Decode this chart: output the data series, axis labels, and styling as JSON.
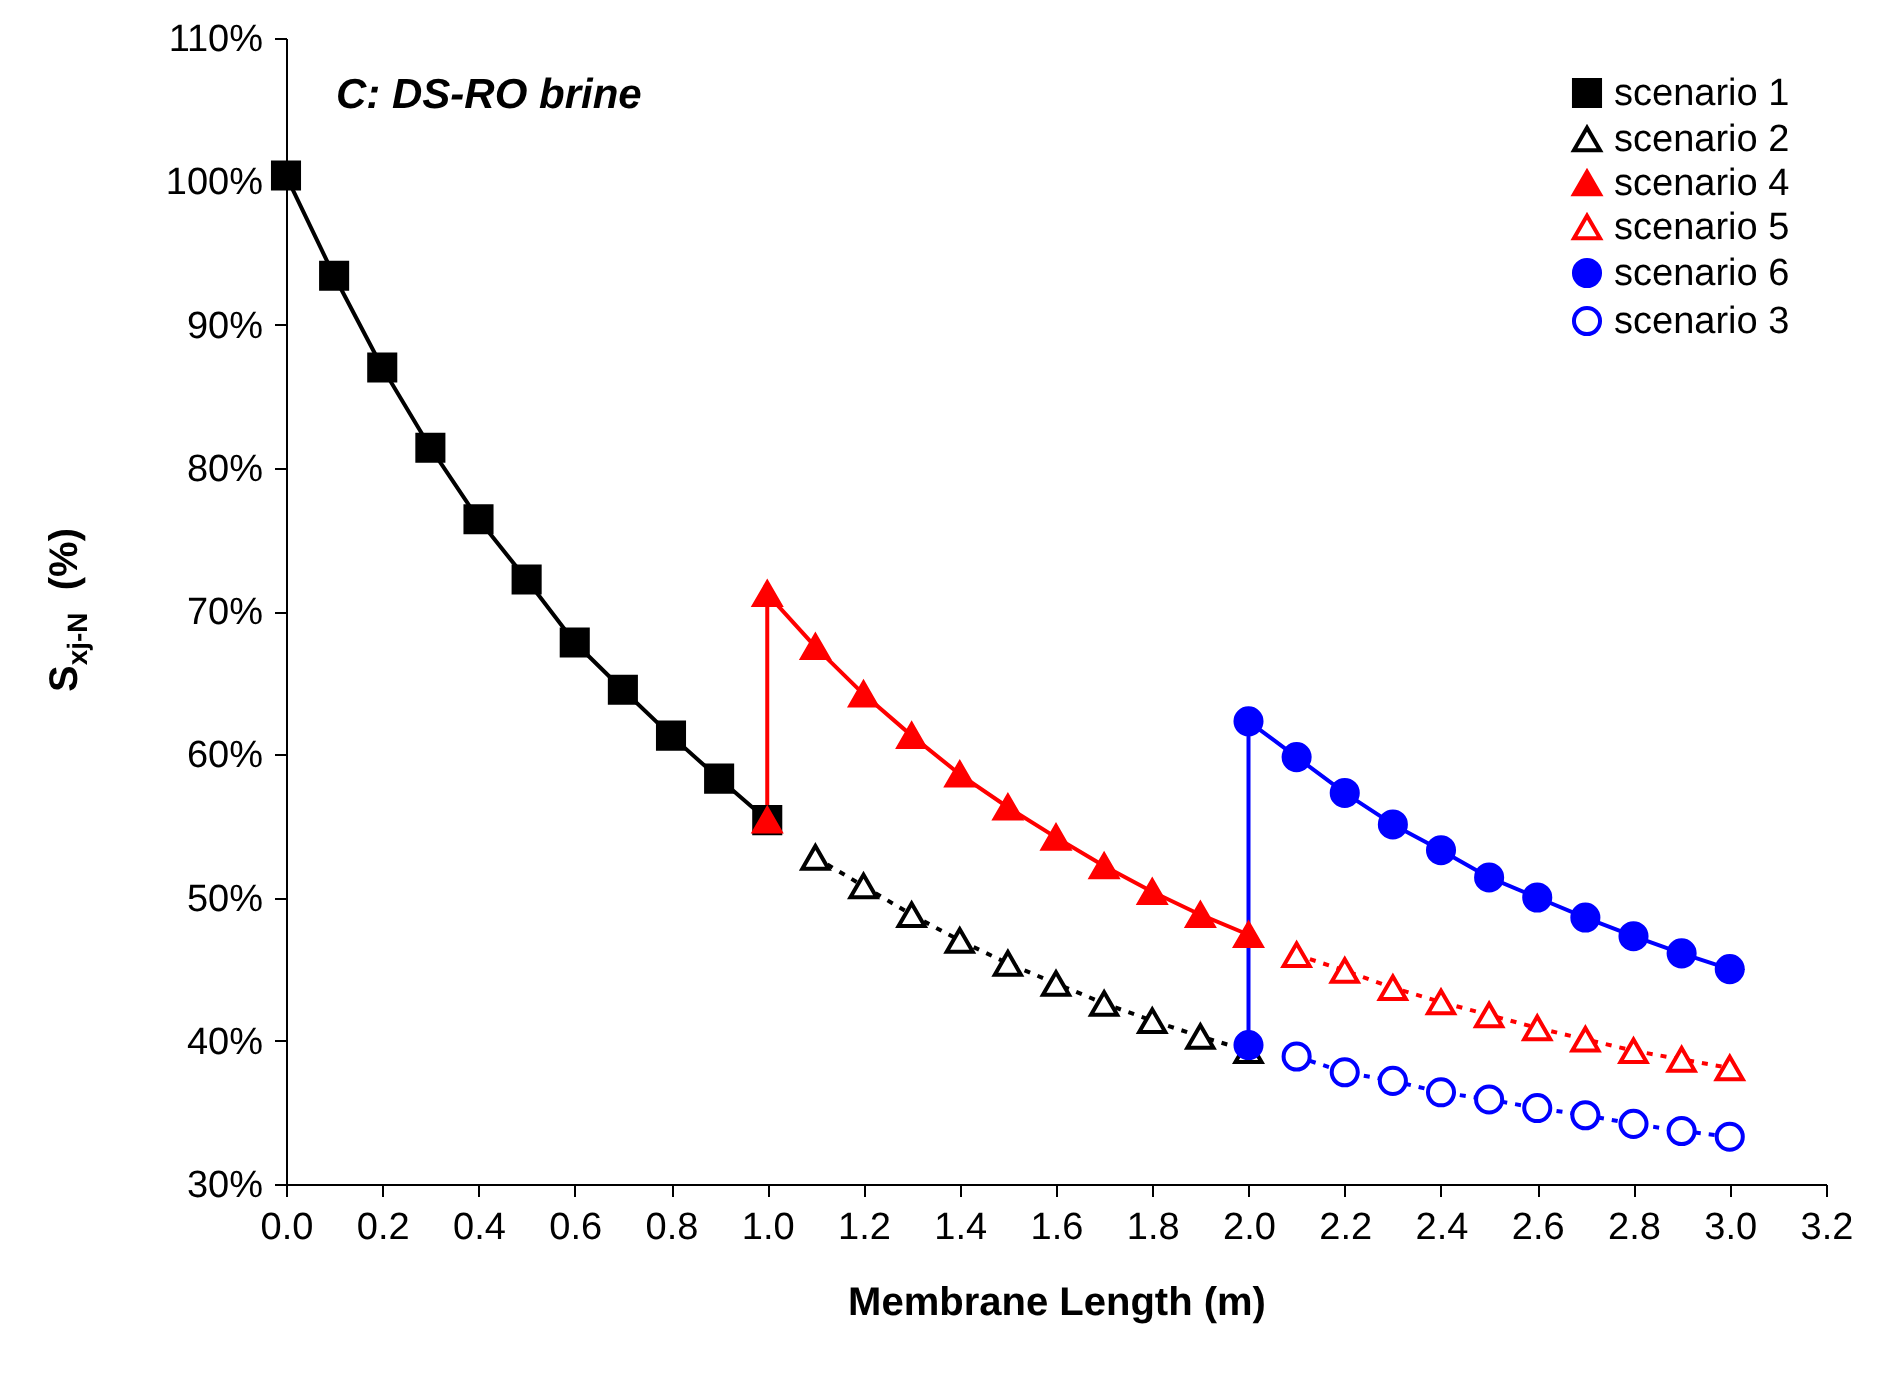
{
  "chart_data": {
    "type": "line",
    "title": "C: DS-RO brine",
    "xlabel": "Membrane Length (m)",
    "ylabel": "S$_{xj-N}$  (%)",
    "xlim": [
      0,
      3.2
    ],
    "xticks": [
      {
        "value": 0,
        "label": "0.0"
      },
      {
        "value": 0.2,
        "label": "0.2"
      },
      {
        "value": 0.4,
        "label": "0.4"
      },
      {
        "value": 0.6,
        "label": "0.6"
      },
      {
        "value": 0.8,
        "label": "0.8"
      },
      {
        "value": 1,
        "label": "1.0"
      },
      {
        "value": 1.2,
        "label": "1.2"
      },
      {
        "value": 1.4,
        "label": "1.4"
      },
      {
        "value": 1.6,
        "label": "1.6"
      },
      {
        "value": 1.8,
        "label": "1.8"
      },
      {
        "value": 2,
        "label": "2.0"
      },
      {
        "value": 2.2,
        "label": "2.2"
      },
      {
        "value": 2.4,
        "label": "2.4"
      },
      {
        "value": 2.6,
        "label": "2.6"
      },
      {
        "value": 2.8,
        "label": "2.8"
      },
      {
        "value": 3,
        "label": "3.0"
      },
      {
        "value": 3.2,
        "label": "3.2"
      }
    ],
    "ylim": [
      30,
      110
    ],
    "yticks": [
      {
        "value": 30,
        "label": "30%"
      },
      {
        "value": 40,
        "label": "40%"
      },
      {
        "value": 50,
        "label": "50%"
      },
      {
        "value": 60,
        "label": "60%"
      },
      {
        "value": 70,
        "label": "70%"
      },
      {
        "value": 80,
        "label": "80%"
      },
      {
        "value": 90,
        "label": "90%"
      },
      {
        "value": 100,
        "label": "100%"
      },
      {
        "value": 110,
        "label": "110%"
      }
    ],
    "grid": false,
    "legend": "top right",
    "series": [
      {
        "name": "scenario 1",
        "color": "#000000",
        "marker": "square",
        "line_style": "solid",
        "x": [
          0,
          0.1,
          0.2,
          0.3,
          0.4,
          0.5,
          0.6,
          0.7,
          0.8,
          0.9,
          1.0
        ],
        "values": [
          100.4,
          93.4,
          87.0,
          81.4,
          76.4,
          72.2,
          67.8,
          64.5,
          61.3,
          58.3,
          55.4
        ]
      },
      {
        "name": "scenario 2",
        "color": "#000000",
        "marker": "triangle",
        "line_style": "dotted",
        "x": [
          1.1,
          1.2,
          1.3,
          1.4,
          1.5,
          1.6,
          1.7,
          1.8,
          1.9,
          2.0
        ],
        "values": [
          52.8,
          50.8,
          48.8,
          47.0,
          45.4,
          44.0,
          42.6,
          41.4,
          40.3,
          39.3
        ]
      },
      {
        "name": "scenario 4",
        "color": "#ff0000",
        "marker": "triangle",
        "line_style": "solid",
        "x": [
          1.0,
          1.0,
          1.1,
          1.2,
          1.3,
          1.4,
          1.5,
          1.6,
          1.7,
          1.8,
          1.9,
          2.0
        ],
        "values": [
          55.4,
          71.2,
          67.5,
          64.2,
          61.3,
          58.6,
          56.3,
          54.2,
          52.2,
          50.4,
          48.8,
          47.4
        ]
      },
      {
        "name": "scenario 5",
        "color": "#ff0000",
        "marker": "triangle",
        "line_style": "dotted",
        "x": [
          2.1,
          2.2,
          2.3,
          2.4,
          2.5,
          2.6,
          2.7,
          2.8,
          2.9,
          3.0
        ],
        "values": [
          46.0,
          44.9,
          43.7,
          42.7,
          41.8,
          40.9,
          40.1,
          39.3,
          38.7,
          38.1
        ]
      },
      {
        "name": "scenario 6",
        "color": "#0000ff",
        "marker": "circle",
        "line_style": "solid",
        "x": [
          2.0,
          2.0,
          2.1,
          2.2,
          2.3,
          2.4,
          2.5,
          2.6,
          2.7,
          2.8,
          2.9,
          3.0
        ],
        "values": [
          39.7,
          62.3,
          59.8,
          57.3,
          55.1,
          53.3,
          51.4,
          50.0,
          48.6,
          47.3,
          46.1,
          45.0
        ]
      },
      {
        "name": "scenario 3",
        "color": "#0000ff",
        "marker": "circle",
        "line_style": "dotted",
        "x": [
          2.1,
          2.2,
          2.3,
          2.4,
          2.5,
          2.6,
          2.7,
          2.8,
          2.9,
          3.0
        ],
        "values": [
          38.9,
          37.8,
          37.2,
          36.4,
          35.9,
          35.3,
          34.8,
          34.2,
          33.7,
          33.3
        ]
      }
    ]
  }
}
